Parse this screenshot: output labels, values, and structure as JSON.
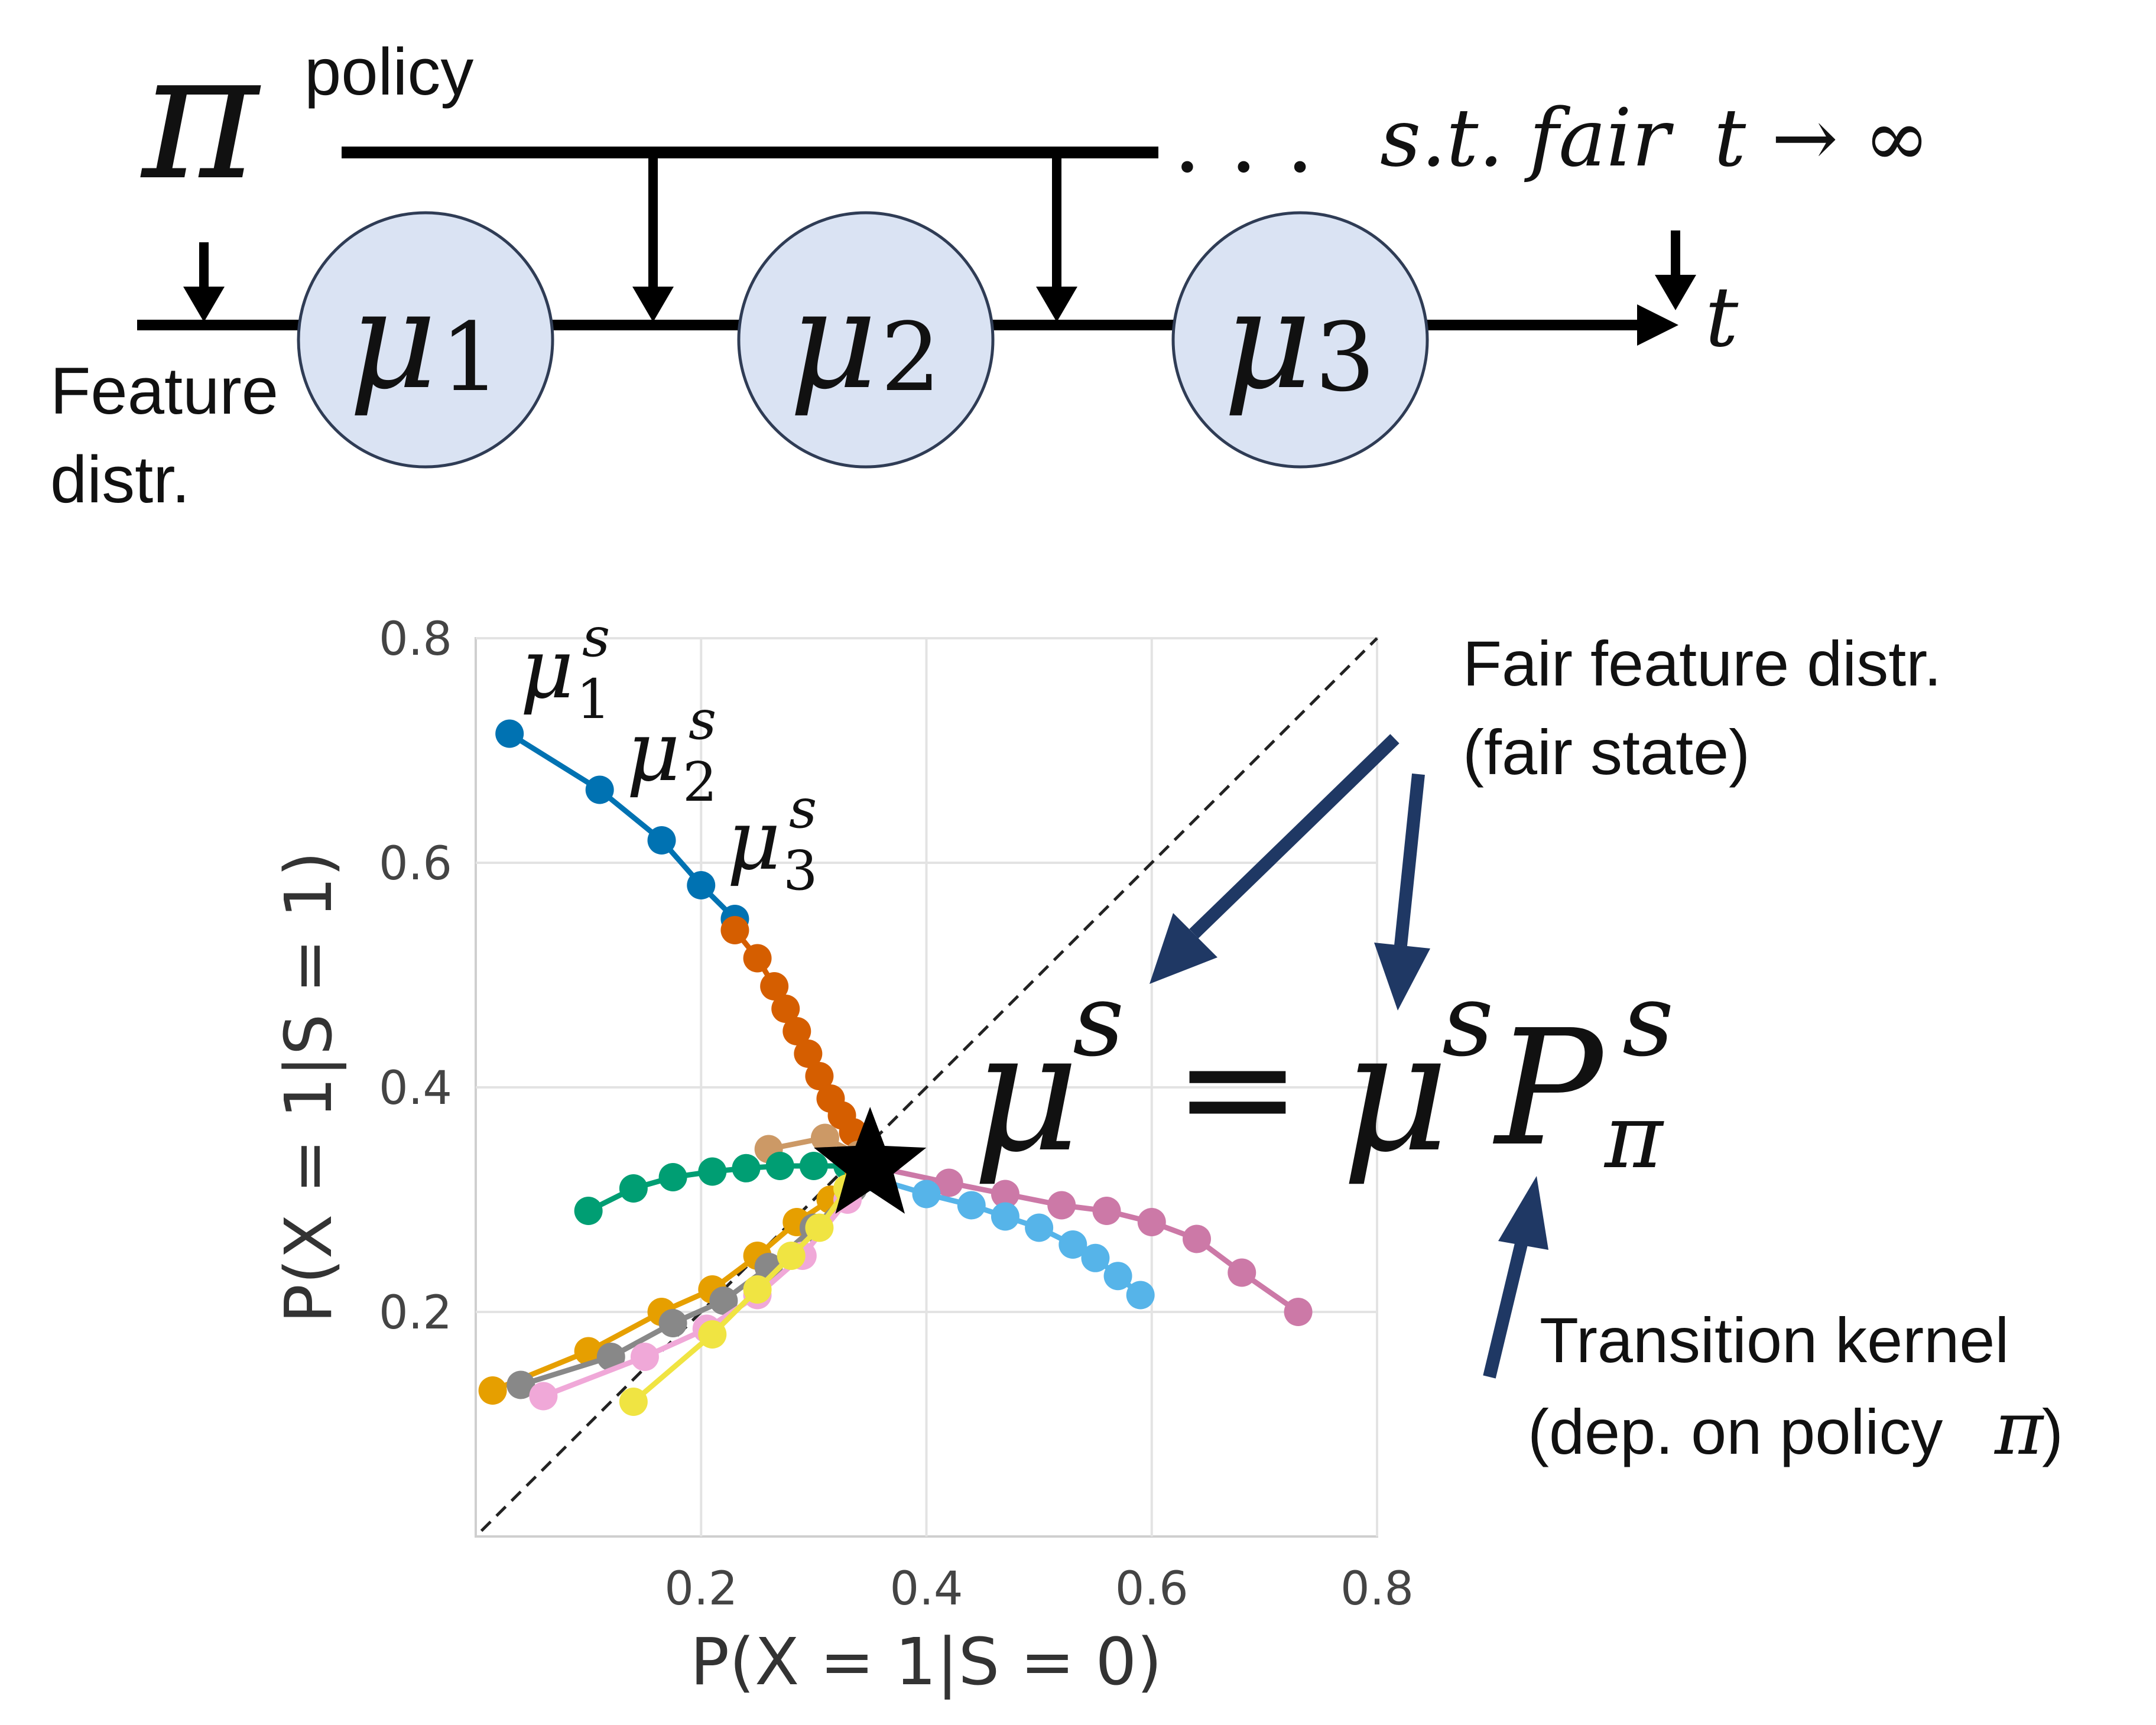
{
  "timeline": {
    "policy_symbol": "π",
    "policy_label": "policy",
    "feature_label_line1": "Feature",
    "feature_label_line2": "distr.",
    "dots": ". . .",
    "constraint_text": "s.t. fair",
    "limit_text": "t → ∞",
    "time_label": "t",
    "nodes": [
      {
        "symbol": "μ",
        "sub": "1"
      },
      {
        "symbol": "μ",
        "sub": "2"
      },
      {
        "symbol": "μ",
        "sub": "3"
      }
    ]
  },
  "annotations": {
    "fair_line1": "Fair feature distr.",
    "fair_line2": "(fair state)",
    "transition_line1": "Transition kernel",
    "transition_line2": "(dep. on policy",
    "transition_pi": "π",
    "transition_close": ")",
    "equation_lhs": "μ",
    "equation_lhs_sup": "s",
    "equation_eq": "=",
    "equation_rhs_mu": "μ",
    "equation_rhs_mu_sup": "s",
    "equation_rhs_P": "P",
    "equation_rhs_P_sup": "s",
    "equation_rhs_P_sub": "π"
  },
  "point_labels": [
    {
      "symbol": "μ",
      "sup": "s",
      "sub": "1"
    },
    {
      "symbol": "μ",
      "sup": "s",
      "sub": "2"
    },
    {
      "symbol": "μ",
      "sup": "s",
      "sub": "3"
    }
  ],
  "colors": {
    "node_fill": "#dae3f3",
    "node_stroke": "#2f3c55",
    "arrow_navy": "#1f3864",
    "star": "#000000"
  },
  "chart_data": {
    "type": "line",
    "xlabel": "P(X = 1|S = 0)",
    "ylabel": "P(X = 1|S = 1)",
    "xlim": [
      0,
      0.8
    ],
    "ylim": [
      0,
      0.8
    ],
    "xticks": [
      "0.2",
      "0.4",
      "0.6",
      "0.8"
    ],
    "yticks": [
      "0.2",
      "0.4",
      "0.6",
      "0.8"
    ],
    "grid": true,
    "diagonal": "dashed y = x",
    "fixed_point": [
      0.35,
      0.33
    ],
    "series": [
      {
        "color": "#0072b2",
        "x": [
          0.03,
          0.11,
          0.165,
          0.2,
          0.23
        ],
        "y": [
          0.715,
          0.665,
          0.62,
          0.58,
          0.55
        ]
      },
      {
        "color": "#d55e00",
        "x": [
          0.23,
          0.25,
          0.265,
          0.275,
          0.285,
          0.295,
          0.305,
          0.315,
          0.325,
          0.335,
          0.345
        ],
        "y": [
          0.54,
          0.515,
          0.49,
          0.47,
          0.45,
          0.43,
          0.41,
          0.39,
          0.375,
          0.36,
          0.345
        ]
      },
      {
        "color": "#cc9966",
        "x": [
          0.26,
          0.31,
          0.34
        ],
        "y": [
          0.345,
          0.355,
          0.34
        ]
      },
      {
        "color": "#009e73",
        "x": [
          0.1,
          0.14,
          0.175,
          0.21,
          0.24,
          0.27,
          0.3,
          0.33
        ],
        "y": [
          0.29,
          0.31,
          0.32,
          0.325,
          0.328,
          0.33,
          0.33,
          0.33
        ]
      },
      {
        "color": "#cc79a7",
        "x": [
          0.35,
          0.42,
          0.47,
          0.52,
          0.56,
          0.6,
          0.64,
          0.68,
          0.73
        ],
        "y": [
          0.33,
          0.315,
          0.305,
          0.295,
          0.29,
          0.28,
          0.265,
          0.235,
          0.2
        ]
      },
      {
        "color": "#56b4e9",
        "x": [
          0.35,
          0.4,
          0.44,
          0.47,
          0.5,
          0.53,
          0.55,
          0.57,
          0.59
        ],
        "y": [
          0.32,
          0.305,
          0.295,
          0.285,
          0.275,
          0.26,
          0.248,
          0.232,
          0.215
        ]
      },
      {
        "color": "#e69f00",
        "x": [
          0.015,
          0.1,
          0.165,
          0.21,
          0.25,
          0.285,
          0.315,
          0.34
        ],
        "y": [
          0.13,
          0.165,
          0.2,
          0.22,
          0.25,
          0.28,
          0.3,
          0.325
        ]
      },
      {
        "color": "#888888",
        "x": [
          0.04,
          0.12,
          0.175,
          0.22,
          0.26,
          0.3,
          0.335
        ],
        "y": [
          0.135,
          0.16,
          0.19,
          0.21,
          0.24,
          0.275,
          0.31
        ]
      },
      {
        "color": "#f0a8d8",
        "x": [
          0.06,
          0.15,
          0.205,
          0.25,
          0.29,
          0.33
        ],
        "y": [
          0.125,
          0.16,
          0.185,
          0.215,
          0.25,
          0.3
        ]
      },
      {
        "color": "#f0e442",
        "x": [
          0.14,
          0.21,
          0.25,
          0.28,
          0.305,
          0.33
        ],
        "y": [
          0.12,
          0.18,
          0.22,
          0.25,
          0.275,
          0.31
        ]
      }
    ]
  }
}
